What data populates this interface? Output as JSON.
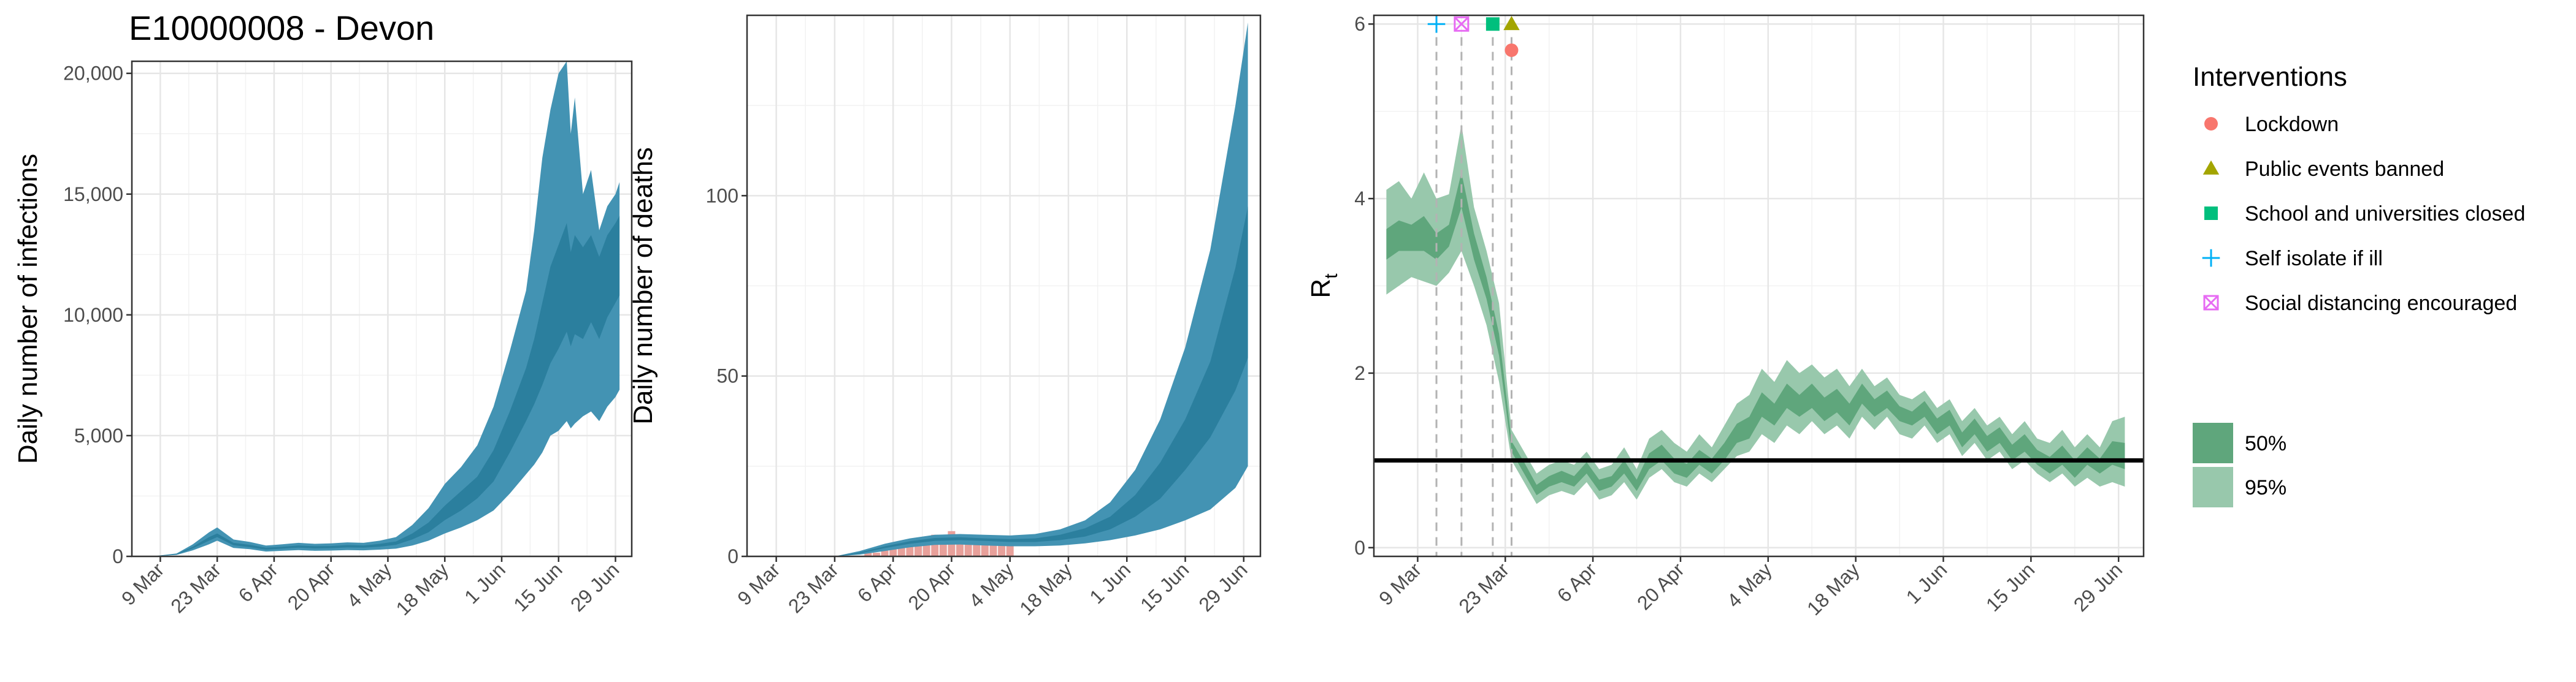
{
  "page_title": "E10000008 - Devon",
  "chart_data": [
    {
      "type": "area",
      "panel": "infections",
      "ylabel": "Daily number of infections",
      "xlabel": "",
      "x_tick_labels": [
        "9 Mar",
        "23 Mar",
        "6 Apr",
        "20 Apr",
        "4 May",
        "18 May",
        "1 Jun",
        "15 Jun",
        "29 Jun"
      ],
      "x_tick_days": [
        0,
        14,
        28,
        42,
        56,
        70,
        84,
        98,
        112
      ],
      "xlim_days": [
        -7,
        116
      ],
      "y_ticks": [
        0,
        5000,
        10000,
        15000,
        20000
      ],
      "y_tick_labels": [
        "0",
        "5,000",
        "10,000",
        "15,000",
        "20,000"
      ],
      "ylim": [
        0,
        20500
      ],
      "series": [
        {
          "name": "95%",
          "role": "ci95",
          "color": "#4393b3",
          "x": [
            -2,
            4,
            8,
            12,
            14,
            18,
            22,
            26,
            30,
            34,
            38,
            42,
            46,
            50,
            54,
            58,
            62,
            66,
            70,
            74,
            78,
            82,
            86,
            90,
            92,
            94,
            96,
            98,
            100,
            101,
            102,
            104,
            106,
            108,
            110,
            112,
            113
          ],
          "lower": [
            0,
            60,
            250,
            500,
            650,
            350,
            300,
            200,
            230,
            260,
            230,
            240,
            260,
            250,
            280,
            320,
            450,
            650,
            950,
            1200,
            1500,
            1900,
            2600,
            3400,
            3800,
            4300,
            5000,
            5200,
            5600,
            5300,
            5500,
            5800,
            6000,
            5600,
            6200,
            6600,
            6900
          ],
          "upper": [
            0,
            120,
            500,
            1000,
            1200,
            700,
            600,
            450,
            500,
            560,
            520,
            540,
            580,
            560,
            650,
            800,
            1300,
            2000,
            3000,
            3700,
            4600,
            6200,
            8500,
            11000,
            13500,
            16500,
            18500,
            20000,
            20500,
            17500,
            19000,
            15000,
            16000,
            13500,
            14500,
            15000,
            15500
          ]
        },
        {
          "name": "50%",
          "role": "ci50",
          "color": "#2b7f9e",
          "x": [
            -2,
            4,
            8,
            12,
            14,
            18,
            22,
            26,
            30,
            34,
            38,
            42,
            46,
            50,
            54,
            58,
            62,
            66,
            70,
            74,
            78,
            82,
            86,
            90,
            92,
            94,
            96,
            98,
            100,
            101,
            102,
            104,
            106,
            108,
            110,
            112,
            113
          ],
          "lower": [
            0,
            80,
            330,
            650,
            800,
            460,
            380,
            280,
            320,
            360,
            330,
            340,
            370,
            360,
            400,
            480,
            700,
            1000,
            1500,
            1900,
            2400,
            3100,
            4300,
            5600,
            6300,
            7100,
            8000,
            8600,
            9300,
            8700,
            9200,
            9000,
            9700,
            9000,
            9900,
            10500,
            10800
          ],
          "upper": [
            0,
            100,
            400,
            800,
            950,
            560,
            480,
            360,
            400,
            450,
            420,
            430,
            470,
            450,
            520,
            620,
            950,
            1400,
            2100,
            2700,
            3300,
            4400,
            6000,
            7800,
            9000,
            10500,
            12000,
            12900,
            13800,
            12600,
            13300,
            12800,
            13300,
            12400,
            13300,
            13800,
            14100
          ]
        }
      ]
    },
    {
      "type": "area",
      "panel": "deaths",
      "ylabel": "Daily number of deaths",
      "xlabel": "",
      "x_tick_labels": [
        "9 Mar",
        "23 Mar",
        "6 Apr",
        "20 Apr",
        "4 May",
        "18 May",
        "1 Jun",
        "15 Jun",
        "29 Jun"
      ],
      "x_tick_days": [
        0,
        14,
        28,
        42,
        56,
        70,
        84,
        98,
        112
      ],
      "xlim_days": [
        -7,
        116
      ],
      "y_ticks": [
        0,
        50,
        100
      ],
      "y_tick_labels": [
        "0",
        "50",
        "100"
      ],
      "ylim": [
        0,
        150
      ],
      "observed_bars": {
        "color": "#e8a09a",
        "x": [
          22,
          24,
          26,
          28,
          30,
          32,
          34,
          36,
          38,
          40,
          42,
          44,
          46,
          48,
          50,
          52,
          54,
          56
        ],
        "values": [
          1,
          1,
          2,
          3,
          3,
          4,
          5,
          4,
          6,
          5,
          7,
          6,
          4,
          5,
          4,
          3,
          4,
          3
        ]
      },
      "series": [
        {
          "name": "95%",
          "role": "ci95",
          "color": "#4393b3",
          "x": [
            14,
            20,
            26,
            32,
            38,
            44,
            50,
            56,
            62,
            68,
            74,
            80,
            86,
            92,
            98,
            104,
            110,
            113
          ],
          "lower": [
            0,
            0.5,
            1.5,
            2.5,
            3.2,
            3.3,
            3.0,
            2.8,
            2.8,
            3.0,
            3.6,
            4.5,
            5.8,
            7.5,
            10,
            13,
            19,
            25
          ],
          "upper": [
            0,
            1.5,
            3.5,
            5.0,
            6.0,
            6.2,
            6.0,
            5.8,
            6.2,
            7.5,
            10,
            15,
            24,
            38,
            58,
            85,
            125,
            148
          ]
        },
        {
          "name": "50%",
          "role": "ci50",
          "color": "#2b7f9e",
          "x": [
            14,
            20,
            26,
            32,
            38,
            44,
            50,
            56,
            62,
            68,
            74,
            80,
            86,
            92,
            98,
            104,
            110,
            113
          ],
          "lower": [
            0,
            0.8,
            2.3,
            3.5,
            4.3,
            4.5,
            4.3,
            4.0,
            4.0,
            4.5,
            5.5,
            7.5,
            11,
            16,
            24,
            33,
            46,
            55
          ],
          "upper": [
            0,
            1.1,
            2.8,
            4.2,
            5.1,
            5.3,
            5.0,
            4.8,
            5.0,
            6.0,
            7.8,
            11,
            17,
            26,
            38,
            54,
            80,
            97
          ]
        }
      ]
    },
    {
      "type": "area",
      "panel": "rt",
      "ylabel": "Rt",
      "ylabel_main": "R",
      "ylabel_sub": "t",
      "xlabel": "",
      "x_tick_labels": [
        "9 Mar",
        "23 Mar",
        "6 Apr",
        "20 Apr",
        "4 May",
        "18 May",
        "1 Jun",
        "15 Jun",
        "29 Jun"
      ],
      "x_tick_days": [
        0,
        14,
        28,
        42,
        56,
        70,
        84,
        98,
        112
      ],
      "xlim_days": [
        -7,
        116
      ],
      "y_ticks": [
        0,
        2,
        4,
        6
      ],
      "y_tick_labels": [
        "0",
        "2",
        "4",
        "6"
      ],
      "ylim": [
        -0.1,
        6.1
      ],
      "reference_line": 1,
      "intervention_days": [
        3,
        7,
        12,
        15
      ],
      "series": [
        {
          "name": "95%",
          "role": "ci95",
          "color": "#98c8ac",
          "x": [
            -5,
            -3,
            -1,
            1,
            3,
            5,
            7,
            9,
            11,
            13,
            15,
            17,
            19,
            21,
            23,
            25,
            27,
            29,
            31,
            33,
            35,
            37,
            39,
            41,
            43,
            45,
            47,
            49,
            51,
            53,
            55,
            57,
            59,
            61,
            63,
            65,
            67,
            69,
            71,
            73,
            75,
            77,
            79,
            81,
            83,
            85,
            87,
            89,
            91,
            93,
            95,
            97,
            99,
            101,
            103,
            105,
            107,
            109,
            111,
            113
          ],
          "lower": [
            2.9,
            3.0,
            3.1,
            3.05,
            3.0,
            3.15,
            3.4,
            3.0,
            2.55,
            1.9,
            1.0,
            0.75,
            0.5,
            0.6,
            0.65,
            0.6,
            0.75,
            0.55,
            0.6,
            0.75,
            0.55,
            0.8,
            0.9,
            0.75,
            0.7,
            0.85,
            0.75,
            0.9,
            1.05,
            1.1,
            1.3,
            1.2,
            1.4,
            1.3,
            1.45,
            1.3,
            1.4,
            1.25,
            1.5,
            1.35,
            1.5,
            1.3,
            1.25,
            1.4,
            1.2,
            1.3,
            1.05,
            1.2,
            1.0,
            1.1,
            0.9,
            1.0,
            0.85,
            0.75,
            0.85,
            0.7,
            0.8,
            0.7,
            0.75,
            0.7
          ],
          "upper": [
            4.1,
            4.2,
            4.0,
            4.3,
            4.0,
            4.05,
            4.85,
            3.9,
            3.4,
            2.8,
            1.35,
            1.1,
            0.85,
            0.95,
            1.0,
            0.95,
            1.1,
            0.9,
            0.95,
            1.15,
            0.9,
            1.25,
            1.35,
            1.2,
            1.1,
            1.3,
            1.15,
            1.4,
            1.65,
            1.75,
            2.05,
            1.9,
            2.15,
            2.0,
            2.1,
            1.95,
            2.05,
            1.85,
            2.05,
            1.85,
            1.95,
            1.75,
            1.7,
            1.8,
            1.6,
            1.7,
            1.45,
            1.6,
            1.4,
            1.5,
            1.3,
            1.45,
            1.25,
            1.2,
            1.35,
            1.15,
            1.3,
            1.15,
            1.45,
            1.5
          ]
        },
        {
          "name": "50%",
          "role": "ci50",
          "color": "#5fa67c",
          "x": [
            -5,
            -3,
            -1,
            1,
            3,
            5,
            7,
            9,
            11,
            13,
            15,
            17,
            19,
            21,
            23,
            25,
            27,
            29,
            31,
            33,
            35,
            37,
            39,
            41,
            43,
            45,
            47,
            49,
            51,
            53,
            55,
            57,
            59,
            61,
            63,
            65,
            67,
            69,
            71,
            73,
            75,
            77,
            79,
            81,
            83,
            85,
            87,
            89,
            91,
            93,
            95,
            97,
            99,
            101,
            103,
            105,
            107,
            109,
            111,
            113
          ],
          "lower": [
            3.3,
            3.4,
            3.4,
            3.4,
            3.3,
            3.45,
            3.9,
            3.3,
            2.85,
            2.2,
            1.1,
            0.85,
            0.6,
            0.7,
            0.75,
            0.7,
            0.85,
            0.65,
            0.7,
            0.85,
            0.65,
            0.9,
            1.0,
            0.85,
            0.8,
            0.95,
            0.85,
            1.0,
            1.2,
            1.25,
            1.5,
            1.4,
            1.6,
            1.5,
            1.6,
            1.45,
            1.55,
            1.4,
            1.65,
            1.5,
            1.6,
            1.45,
            1.4,
            1.5,
            1.3,
            1.4,
            1.15,
            1.3,
            1.1,
            1.2,
            1.0,
            1.1,
            0.95,
            0.85,
            0.95,
            0.8,
            0.95,
            0.85,
            0.95,
            0.9
          ],
          "upper": [
            3.65,
            3.75,
            3.7,
            3.8,
            3.6,
            3.7,
            4.3,
            3.6,
            3.1,
            2.45,
            1.22,
            0.98,
            0.72,
            0.82,
            0.88,
            0.82,
            0.98,
            0.78,
            0.82,
            1.0,
            0.78,
            1.08,
            1.18,
            1.02,
            0.96,
            1.12,
            1.02,
            1.2,
            1.42,
            1.5,
            1.78,
            1.65,
            1.88,
            1.75,
            1.88,
            1.72,
            1.82,
            1.65,
            1.88,
            1.7,
            1.8,
            1.62,
            1.56,
            1.68,
            1.48,
            1.58,
            1.32,
            1.48,
            1.28,
            1.38,
            1.18,
            1.3,
            1.12,
            1.04,
            1.17,
            1.0,
            1.15,
            1.02,
            1.22,
            1.2
          ]
        }
      ]
    }
  ],
  "legend": {
    "title": "Interventions",
    "items": [
      {
        "label": "Lockdown",
        "shape": "circle-icon",
        "color": "#f8766d"
      },
      {
        "label": "Public events banned",
        "shape": "triangle-icon",
        "color": "#a3a500"
      },
      {
        "label": "School and universities closed",
        "shape": "square-icon",
        "color": "#00bf7d"
      },
      {
        "label": "Self isolate if ill",
        "shape": "plus-icon",
        "color": "#00b0f6"
      },
      {
        "label": "Social distancing encouraged",
        "shape": "boxed-x-icon",
        "color": "#e76bf3"
      }
    ],
    "ci_items": [
      {
        "label": "50%",
        "color": "#5fa67c"
      },
      {
        "label": "95%",
        "color": "#98c8ac"
      }
    ]
  },
  "intervention_markers": [
    {
      "day": 3,
      "rt": 6.0,
      "shape": "plus-icon",
      "color": "#00b0f6"
    },
    {
      "day": 7,
      "rt": 6.0,
      "shape": "boxed-x-icon",
      "color": "#e76bf3"
    },
    {
      "day": 12,
      "rt": 6.0,
      "shape": "square-icon",
      "color": "#00bf7d"
    },
    {
      "day": 15,
      "rt": 6.0,
      "shape": "triangle-icon",
      "color": "#a3a500"
    },
    {
      "day": 15,
      "rt": 5.7,
      "shape": "circle-icon",
      "color": "#f8766d"
    }
  ]
}
